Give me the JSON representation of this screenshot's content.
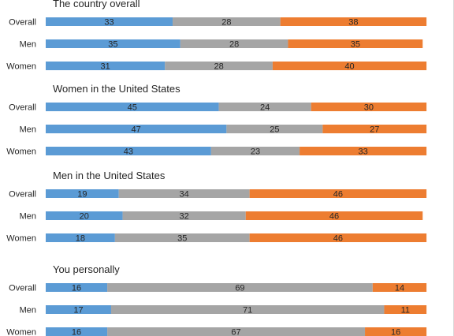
{
  "chart_data": {
    "type": "bar",
    "orientation": "horizontal",
    "stacked": "100%",
    "legend": "none",
    "grid": false,
    "colors": {
      "seg1": "#5b9bd5",
      "seg2": "#a5a5a5",
      "seg3": "#ed7d31"
    },
    "groups": [
      {
        "title": "The country overall",
        "rows": [
          {
            "label": "Overall",
            "values": [
              33,
              28,
              38
            ]
          },
          {
            "label": "Men",
            "values": [
              35,
              28,
              35
            ]
          },
          {
            "label": "Women",
            "values": [
              31,
              28,
              40
            ]
          }
        ]
      },
      {
        "title": "Women in the United States",
        "rows": [
          {
            "label": "Overall",
            "values": [
              45,
              24,
              30
            ]
          },
          {
            "label": "Men",
            "values": [
              47,
              25,
              27
            ]
          },
          {
            "label": "Women",
            "values": [
              43,
              23,
              33
            ]
          }
        ]
      },
      {
        "title": "Men in the United States",
        "rows": [
          {
            "label": "Overall",
            "values": [
              19,
              34,
              46
            ]
          },
          {
            "label": "Men",
            "values": [
              20,
              32,
              46
            ]
          },
          {
            "label": "Women",
            "values": [
              18,
              35,
              46
            ]
          }
        ]
      },
      {
        "title": "You personally",
        "rows": [
          {
            "label": "Overall",
            "values": [
              16,
              69,
              14
            ]
          },
          {
            "label": "Men",
            "values": [
              17,
              71,
              11
            ]
          },
          {
            "label": "Women",
            "values": [
              16,
              67,
              16
            ]
          }
        ]
      }
    ]
  }
}
